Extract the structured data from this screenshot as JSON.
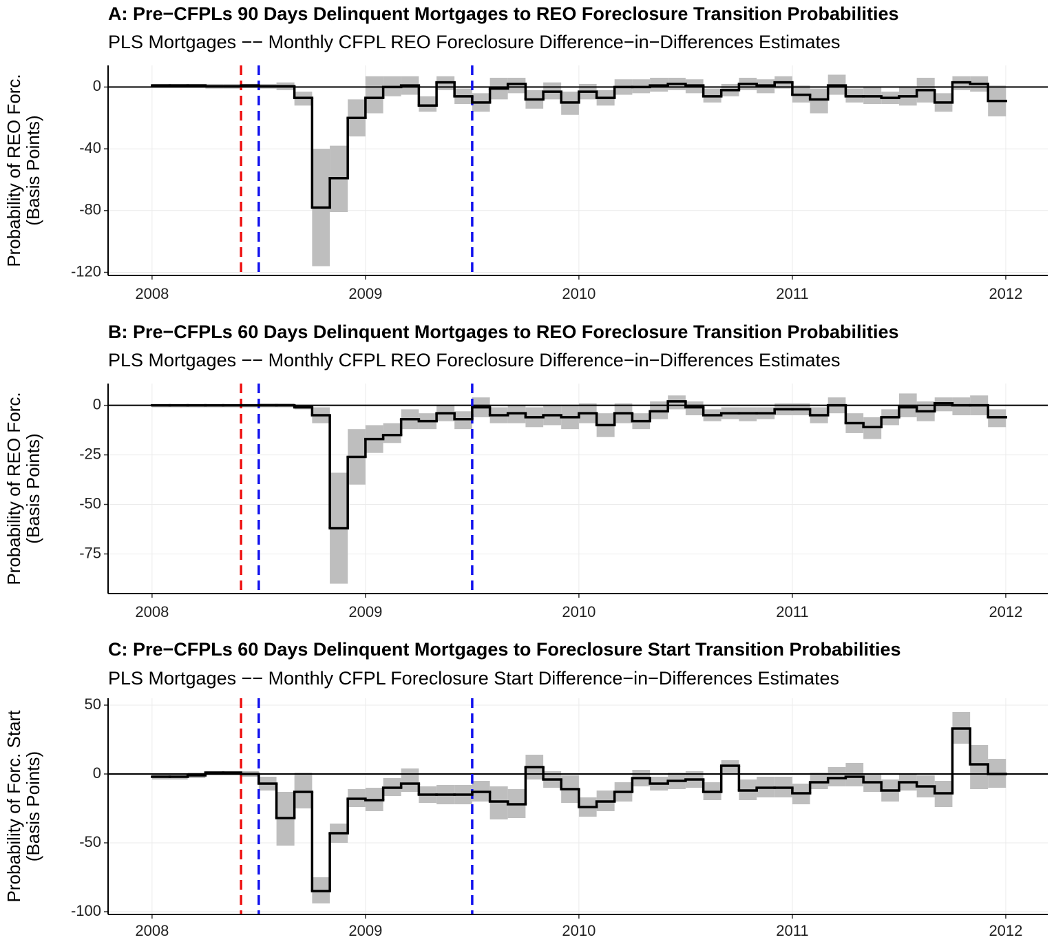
{
  "chart_data": [
    {
      "type": "step-band",
      "title": "A: Pre−CFPLs 90 Days Delinquent Mortgages to REO Foreclosure Transition Probabilities",
      "subtitle": "PLS Mortgages −− Monthly CFPL REO Foreclosure Difference−in−Differences Estimates",
      "ylabel": [
        "Probability of REO Forc.",
        "(Basis Points)"
      ],
      "x": [
        2008,
        2008.083,
        2008.167,
        2008.25,
        2008.333,
        2008.417,
        2008.5,
        2008.583,
        2008.667,
        2008.75,
        2008.833,
        2008.917,
        2009,
        2009.083,
        2009.167,
        2009.25,
        2009.333,
        2009.417,
        2009.5,
        2009.583,
        2009.667,
        2009.75,
        2009.833,
        2009.917,
        2010,
        2010.083,
        2010.167,
        2010.25,
        2010.333,
        2010.417,
        2010.5,
        2010.583,
        2010.667,
        2010.75,
        2010.833,
        2010.917,
        2011,
        2011.083,
        2011.167,
        2011.25,
        2011.333,
        2011.417,
        2011.5,
        2011.583,
        2011.667,
        2011.75,
        2011.833,
        2011.917
      ],
      "values": [
        1,
        1,
        1,
        0.5,
        0.5,
        1,
        0.5,
        0.5,
        -7,
        -78,
        -59,
        -20,
        -7,
        0,
        1,
        -12,
        3,
        -6,
        -10,
        -1,
        2,
        -8,
        -3,
        -10,
        -3,
        -7,
        0,
        0,
        1,
        2,
        1,
        -6,
        -2,
        2,
        1,
        3,
        -5,
        -8,
        1,
        -6,
        -6,
        -7,
        -6,
        -2,
        -10,
        3,
        2,
        -9
      ],
      "lower": [
        0,
        0,
        0,
        -1,
        -1,
        0,
        -1,
        -2,
        -12,
        -116,
        -81,
        -32,
        -17,
        -6,
        -5,
        -16,
        -2,
        -11,
        -16,
        -8,
        -4,
        -14,
        -8,
        -18,
        -8,
        -12,
        -5,
        -4,
        -3,
        -2,
        -4,
        -10,
        -6,
        -2,
        -4,
        -1,
        -10,
        -17,
        -5,
        -10,
        -11,
        -11,
        -12,
        -10,
        -16,
        -2,
        -3,
        -19
      ],
      "upper": [
        2,
        2,
        2,
        2,
        2,
        2,
        2,
        3,
        -3,
        -40,
        -38,
        -8,
        7,
        7,
        7,
        -6,
        7,
        -1,
        -4,
        6,
        6,
        -2,
        3,
        -3,
        2,
        -2,
        5,
        5,
        6,
        6,
        5,
        -1,
        2,
        6,
        5,
        7,
        1,
        -1,
        8,
        -1,
        0,
        -3,
        0,
        6,
        -4,
        7,
        7,
        1
      ],
      "color": "#000000",
      "band_color": "#bebebe",
      "xlim": [
        2007.794,
        2012.197
      ],
      "xticks": [
        2008,
        2009,
        2010,
        2011,
        2012
      ],
      "ylim": [
        -122,
        14
      ],
      "yticks": [
        -120,
        -80,
        -40,
        0
      ],
      "hline": 0,
      "grid": true,
      "vlines": [
        {
          "x": 2008.417,
          "color": "#ee1111"
        },
        {
          "x": 2008.5,
          "color": "#1111ee"
        },
        {
          "x": 2009.5,
          "color": "#1111ee"
        }
      ]
    },
    {
      "type": "step-band",
      "title": "B: Pre−CFPLs 60 Days Delinquent Mortgages to REO Foreclosure Transition Probabilities",
      "subtitle": "PLS Mortgages −− Monthly CFPL REO Foreclosure Difference−in−Differences Estimates",
      "ylabel": [
        "Probability of REO Forc.",
        "(Basis Points)"
      ],
      "x": [
        2008,
        2008.083,
        2008.167,
        2008.25,
        2008.333,
        2008.417,
        2008.5,
        2008.583,
        2008.667,
        2008.75,
        2008.833,
        2008.917,
        2009,
        2009.083,
        2009.167,
        2009.25,
        2009.333,
        2009.417,
        2009.5,
        2009.583,
        2009.667,
        2009.75,
        2009.833,
        2009.917,
        2010,
        2010.083,
        2010.167,
        2010.25,
        2010.333,
        2010.417,
        2010.5,
        2010.583,
        2010.667,
        2010.75,
        2010.833,
        2010.917,
        2011,
        2011.083,
        2011.167,
        2011.25,
        2011.333,
        2011.417,
        2011.5,
        2011.583,
        2011.667,
        2011.75,
        2011.833,
        2011.917
      ],
      "values": [
        0,
        0,
        0,
        0,
        0,
        0,
        0,
        0,
        -1,
        -5,
        -62,
        -26,
        -17,
        -15,
        -7,
        -8,
        -4,
        -7,
        -1,
        -5,
        -4,
        -6,
        -5,
        -6,
        -4,
        -10,
        -4,
        -8,
        -3,
        2,
        -1,
        -5,
        -4,
        -4,
        -4,
        -2,
        -2,
        -5,
        0,
        -9,
        -11,
        -6,
        -1,
        -3,
        1,
        0,
        0,
        -6
      ],
      "lower": [
        -1,
        -1,
        -1,
        -1,
        -1,
        -1,
        -1,
        -1,
        -2,
        -9,
        -90,
        -40,
        -24,
        -19,
        -12,
        -12,
        -8,
        -12,
        -6,
        -9,
        -9,
        -11,
        -10,
        -12,
        -9,
        -16,
        -9,
        -12,
        -7,
        -2,
        -5,
        -8,
        -7,
        -8,
        -7,
        -5,
        -5,
        -9,
        -4,
        -14,
        -17,
        -10,
        -6,
        -8,
        -3,
        -5,
        -5,
        -11
      ],
      "upper": [
        0,
        0,
        0,
        0,
        0,
        0,
        1,
        1,
        0,
        -1,
        -34,
        -12,
        -10,
        -9,
        -2,
        -4,
        0,
        -3,
        4,
        -1,
        0,
        -1,
        0,
        0,
        1,
        -4,
        1,
        -4,
        2,
        5,
        2,
        -2,
        -1,
        -1,
        -1,
        1,
        1,
        -1,
        4,
        -4,
        -6,
        -2,
        6,
        2,
        4,
        4,
        5,
        -2
      ],
      "color": "#000000",
      "band_color": "#bebebe",
      "xlim": [
        2007.794,
        2012.197
      ],
      "xticks": [
        2008,
        2009,
        2010,
        2011,
        2012
      ],
      "ylim": [
        -95,
        11
      ],
      "yticks": [
        -75,
        -50,
        -25,
        0
      ],
      "hline": 0,
      "grid": true,
      "vlines": [
        {
          "x": 2008.417,
          "color": "#ee1111"
        },
        {
          "x": 2008.5,
          "color": "#1111ee"
        },
        {
          "x": 2009.5,
          "color": "#1111ee"
        }
      ]
    },
    {
      "type": "step-band",
      "title": "C: Pre−CFPLs 60 Days Delinquent Mortgages to Foreclosure Start Transition Probabilities",
      "subtitle": "PLS Mortgages −− Monthly CFPL Foreclosure Start Difference−in−Differences Estimates",
      "ylabel": [
        "Probability of Forc. Start",
        "(Basis Points)"
      ],
      "x": [
        2008,
        2008.083,
        2008.167,
        2008.25,
        2008.333,
        2008.417,
        2008.5,
        2008.583,
        2008.667,
        2008.75,
        2008.833,
        2008.917,
        2009,
        2009.083,
        2009.167,
        2009.25,
        2009.333,
        2009.417,
        2009.5,
        2009.583,
        2009.667,
        2009.75,
        2009.833,
        2009.917,
        2010,
        2010.083,
        2010.167,
        2010.25,
        2010.333,
        2010.417,
        2010.5,
        2010.583,
        2010.667,
        2010.75,
        2010.833,
        2010.917,
        2011,
        2011.083,
        2011.167,
        2011.25,
        2011.333,
        2011.417,
        2011.5,
        2011.583,
        2011.667,
        2011.75,
        2011.833,
        2011.917
      ],
      "values": [
        -2,
        -2,
        -1,
        1,
        1,
        0,
        -7,
        -32,
        -13,
        -85,
        -43,
        -18,
        -19,
        -10,
        -7,
        -15,
        -15,
        -15,
        -13,
        -20,
        -22,
        5,
        -4,
        -11,
        -24,
        -20,
        -13,
        -3,
        -7,
        -5,
        -4,
        -13,
        6,
        -12,
        -10,
        -10,
        -14,
        -6,
        -3,
        -2,
        -6,
        -12,
        -6,
        -9,
        -14,
        33,
        7,
        0
      ],
      "lower": [
        -4,
        -4,
        -3,
        -1,
        -1,
        -2,
        -12,
        -52,
        -25,
        -94,
        -50,
        -24,
        -27,
        -16,
        -13,
        -21,
        -22,
        -22,
        -20,
        -33,
        -32,
        -4,
        -10,
        -21,
        -31,
        -27,
        -20,
        -9,
        -12,
        -11,
        -10,
        -19,
        0,
        -19,
        -17,
        -17,
        -22,
        -11,
        -9,
        -9,
        -13,
        -20,
        -12,
        -17,
        -24,
        22,
        -11,
        -10
      ],
      "upper": [
        0,
        0,
        1,
        2,
        2,
        2,
        -2,
        -13,
        1,
        -75,
        -36,
        -11,
        -10,
        -3,
        4,
        -9,
        -8,
        -8,
        -5,
        -9,
        -11,
        14,
        2,
        -1,
        -17,
        -12,
        -6,
        3,
        -2,
        1,
        2,
        -6,
        10,
        -4,
        -2,
        -2,
        -7,
        1,
        5,
        8,
        0,
        -4,
        0,
        -1,
        -5,
        45,
        21,
        11
      ],
      "color": "#000000",
      "band_color": "#bebebe",
      "xlim": [
        2007.794,
        2012.197
      ],
      "xticks": [
        2008,
        2009,
        2010,
        2011,
        2012
      ],
      "ylim": [
        -102,
        55
      ],
      "yticks": [
        -100,
        -50,
        0,
        50
      ],
      "hline": 0,
      "grid": true,
      "vlines": [
        {
          "x": 2008.417,
          "color": "#ee1111"
        },
        {
          "x": 2008.5,
          "color": "#1111ee"
        },
        {
          "x": 2009.5,
          "color": "#1111ee"
        }
      ]
    }
  ]
}
